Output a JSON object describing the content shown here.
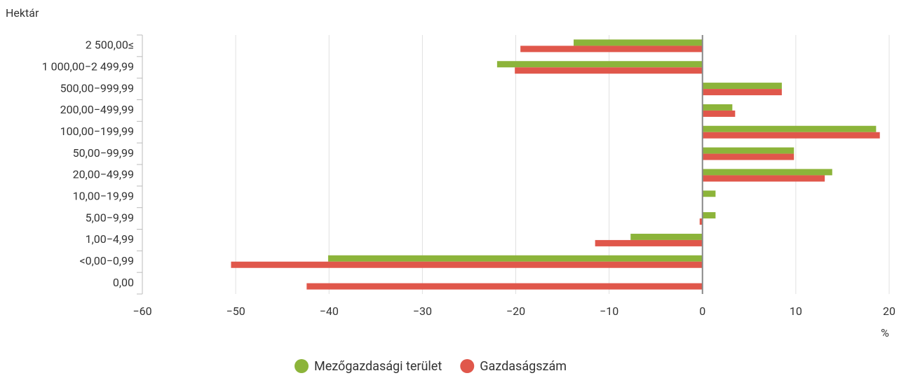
{
  "chart_data": {
    "type": "hbar",
    "y_axis_label": "Hektár",
    "x_axis_label": "%",
    "categories": [
      "2 500,00≤",
      "1 000,00−2 499,99",
      "500,00−999,99",
      "200,00−499,99",
      "100,00−199,99",
      "50,00−99,99",
      "20,00−49,99",
      "10,00−19,99",
      "5,00−9,99",
      "1,00−4,99",
      "<0,00−0,99",
      "0,00"
    ],
    "series": [
      {
        "name": "Mezőgazdasági terület",
        "color": "#8cb43a",
        "values": [
          -13.8,
          -22.0,
          8.5,
          3.2,
          18.6,
          9.8,
          13.9,
          1.4,
          1.4,
          -7.7,
          -40.1,
          0
        ]
      },
      {
        "name": "Gazdaságszám",
        "color": "#e0574b",
        "values": [
          -19.5,
          -20.1,
          8.5,
          3.5,
          19.0,
          9.8,
          13.1,
          0,
          -0.3,
          -11.5,
          -50.5,
          -42.4
        ]
      }
    ],
    "xlim": [
      -60,
      20
    ],
    "xticks": [
      {
        "value": -60,
        "label": "−60"
      },
      {
        "value": -50,
        "label": "−50"
      },
      {
        "value": -40,
        "label": "−40"
      },
      {
        "value": -30,
        "label": "−30"
      },
      {
        "value": -20,
        "label": "−20"
      },
      {
        "value": -10,
        "label": "−10"
      },
      0,
      10,
      20
    ],
    "grid": true,
    "legend": "bottom"
  }
}
